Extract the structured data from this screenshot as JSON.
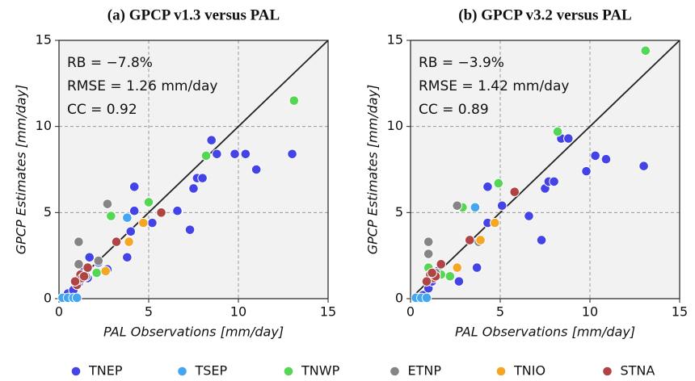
{
  "chart_data": [
    {
      "type": "scatter",
      "title": "(a) GPCP v1.3 versus PAL",
      "x_label": "PAL Observations [mm/day]",
      "y_label": "GPCP Estimates [mm/day]",
      "annotations": [
        "RB = −7.8%",
        "RMSE = 1.26 mm/day",
        "CC = 0.92"
      ],
      "xlim": [
        0,
        15
      ],
      "ylim": [
        0,
        15
      ],
      "xticks": [
        0,
        5,
        10,
        15
      ],
      "yticks": [
        0,
        5,
        10,
        15
      ],
      "grid": true,
      "series": [
        {
          "name": "TNEP",
          "color": "#4343e6",
          "x": [
            0.3,
            0.5,
            0.8,
            1.1,
            1.3,
            1.6,
            1.7,
            2.7,
            3.8,
            4.0,
            4.2,
            4.2,
            5.2,
            6.6,
            7.3,
            7.5,
            7.7,
            8.0,
            8.5,
            8.8,
            9.8,
            10.4,
            11.0,
            13.0,
            2.2,
            1.4
          ],
          "values": [
            0.1,
            0.3,
            0.5,
            0.9,
            1.3,
            1.2,
            2.4,
            1.7,
            2.4,
            3.9,
            5.1,
            6.5,
            4.4,
            5.1,
            4.0,
            6.4,
            7.0,
            7.0,
            9.2,
            8.4,
            8.4,
            8.4,
            7.5,
            8.4,
            2.1,
            1.6
          ]
        },
        {
          "name": "TSEP",
          "color": "#44a6ee",
          "x": [
            0.2,
            0.5,
            0.8,
            1.0,
            3.8
          ],
          "values": [
            0.05,
            0.05,
            0.05,
            0.05,
            4.7
          ]
        },
        {
          "name": "TNWP",
          "color": "#55d655",
          "x": [
            2.9,
            5.0,
            8.2,
            13.1,
            2.1,
            1.3
          ],
          "values": [
            4.8,
            5.6,
            8.3,
            11.5,
            1.5,
            1.4
          ]
        },
        {
          "name": "ETNP",
          "color": "#858585",
          "x": [
            1.1,
            1.1,
            2.7,
            2.2,
            1.5
          ],
          "values": [
            3.3,
            2.0,
            5.5,
            2.2,
            1.3
          ]
        },
        {
          "name": "TNIO",
          "color": "#f5a623",
          "x": [
            2.6,
            3.9,
            4.7
          ],
          "values": [
            1.6,
            3.3,
            4.4
          ]
        },
        {
          "name": "STNA",
          "color": "#b04444",
          "x": [
            3.2,
            5.7,
            1.0,
            1.1,
            1.2,
            1.3,
            1.4,
            0.9,
            1.6
          ],
          "values": [
            3.3,
            5.0,
            0.8,
            1.1,
            1.4,
            1.2,
            1.3,
            1.0,
            1.8
          ]
        }
      ]
    },
    {
      "type": "scatter",
      "title": "(b) GPCP v3.2 versus PAL",
      "x_label": "PAL Observations [mm/day]",
      "y_label": "GPCP Estimates [mm/day]",
      "annotations": [
        "RB = −3.9%",
        "RMSE = 1.42 mm/day",
        "CC = 0.89"
      ],
      "xlim": [
        0,
        15
      ],
      "ylim": [
        0,
        15
      ],
      "xticks": [
        0,
        5,
        10,
        15
      ],
      "yticks": [
        0,
        5,
        10,
        15
      ],
      "grid": true,
      "series": [
        {
          "name": "TNEP",
          "color": "#4343e6",
          "x": [
            0.3,
            0.7,
            1.0,
            1.2,
            2.7,
            3.7,
            4.3,
            4.3,
            5.1,
            6.6,
            7.3,
            7.5,
            7.7,
            8.0,
            8.4,
            8.8,
            9.8,
            10.3,
            10.9,
            13.0,
            1.5
          ],
          "values": [
            0.05,
            0.2,
            0.6,
            1.0,
            1.0,
            1.8,
            6.5,
            4.4,
            5.4,
            4.8,
            3.4,
            6.4,
            6.8,
            6.8,
            9.3,
            9.3,
            7.4,
            8.3,
            8.1,
            7.7,
            1.6
          ]
        },
        {
          "name": "TSEP",
          "color": "#44a6ee",
          "x": [
            0.3,
            0.6,
            0.9,
            3.6
          ],
          "values": [
            0.05,
            0.05,
            0.05,
            5.3
          ]
        },
        {
          "name": "TNWP",
          "color": "#55d655",
          "x": [
            1.0,
            2.2,
            2.9,
            4.9,
            8.2,
            13.1,
            1.7
          ],
          "values": [
            1.8,
            1.3,
            5.3,
            6.7,
            9.7,
            14.4,
            1.4
          ]
        },
        {
          "name": "ETNP",
          "color": "#858585",
          "x": [
            1.0,
            1.0,
            2.6,
            3.8,
            1.4
          ],
          "values": [
            3.3,
            2.6,
            5.4,
            3.3,
            1.5
          ]
        },
        {
          "name": "TNIO",
          "color": "#f5a623",
          "x": [
            2.6,
            4.7,
            3.9
          ],
          "values": [
            1.8,
            4.4,
            3.4
          ]
        },
        {
          "name": "STNA",
          "color": "#b04444",
          "x": [
            3.3,
            5.8,
            1.1,
            1.3,
            1.4,
            0.9,
            1.7,
            1.2
          ],
          "values": [
            3.4,
            6.2,
            1.4,
            1.2,
            1.3,
            1.0,
            2.0,
            1.5
          ]
        }
      ]
    }
  ]
}
